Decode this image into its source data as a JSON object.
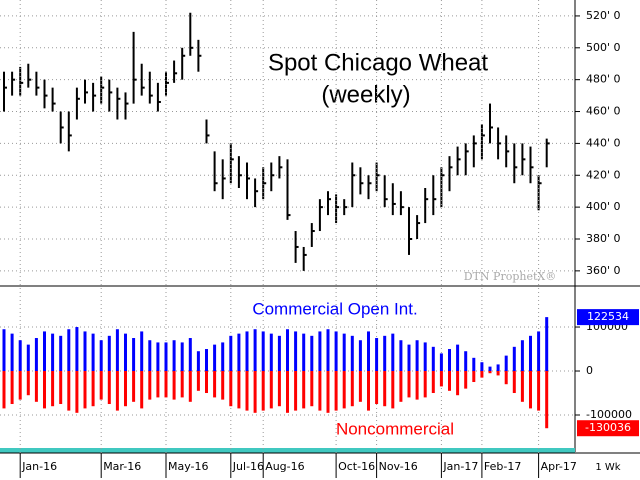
{
  "chart_data": [
    {
      "type": "ohlc",
      "title": "Spot Chicago Wheat",
      "subtitle": "(weekly)",
      "watermark": "DTN ProphetX®",
      "color": "#000000",
      "high": [
        485,
        485,
        488,
        490,
        485,
        480,
        475,
        460,
        460,
        475,
        480,
        478,
        482,
        480,
        475,
        472,
        510,
        490,
        485,
        478,
        485,
        492,
        500,
        522,
        505,
        455,
        435,
        430,
        440,
        432,
        428,
        418,
        425,
        428,
        432,
        430,
        385,
        375,
        390,
        405,
        410,
        408,
        405,
        428,
        425,
        420,
        428,
        420,
        415,
        410,
        400,
        395,
        412,
        420,
        425,
        432,
        438,
        440,
        445,
        452,
        465,
        450,
        445,
        440,
        440,
        438,
        420,
        443
      ],
      "low": [
        460,
        470,
        470,
        475,
        470,
        462,
        460,
        440,
        435,
        455,
        465,
        460,
        465,
        460,
        455,
        455,
        465,
        470,
        465,
        460,
        470,
        478,
        480,
        495,
        485,
        440,
        410,
        405,
        415,
        412,
        405,
        400,
        405,
        410,
        418,
        392,
        365,
        360,
        375,
        385,
        395,
        390,
        395,
        400,
        408,
        405,
        410,
        400,
        395,
        395,
        370,
        380,
        390,
        395,
        400,
        410,
        420,
        420,
        425,
        430,
        440,
        430,
        425,
        415,
        420,
        415,
        398,
        425
      ],
      "close": [
        475,
        480,
        478,
        480,
        475,
        470,
        465,
        450,
        445,
        468,
        472,
        470,
        475,
        472,
        468,
        465,
        480,
        475,
        470,
        466,
        478,
        484,
        495,
        500,
        495,
        445,
        415,
        418,
        430,
        420,
        418,
        410,
        415,
        420,
        425,
        395,
        375,
        370,
        385,
        400,
        405,
        400,
        400,
        420,
        415,
        415,
        420,
        405,
        402,
        400,
        380,
        390,
        405,
        405,
        420,
        425,
        430,
        435,
        440,
        445,
        450,
        440,
        435,
        425,
        430,
        425,
        415,
        440
      ],
      "ylim": [
        350.5,
        530
      ],
      "yticks": [
        {
          "value": 360,
          "label": "360' 0"
        },
        {
          "value": 380,
          "label": "380' 0"
        },
        {
          "value": 400,
          "label": "400' 0"
        },
        {
          "value": 420,
          "label": "420' 0"
        },
        {
          "value": 440,
          "label": "440' 0"
        },
        {
          "value": 460,
          "label": "460' 0"
        },
        {
          "value": 480,
          "label": "480' 0"
        },
        {
          "value": 500,
          "label": "500' 0"
        },
        {
          "value": 520,
          "label": "520' 0"
        }
      ],
      "grid": true
    },
    {
      "type": "bar",
      "interval": "1 Wk",
      "categories": [
        null,
        null,
        "Jan-16",
        null,
        null,
        null,
        null,
        null,
        null,
        null,
        null,
        null,
        "Mar-16",
        null,
        null,
        null,
        null,
        null,
        null,
        null,
        "May-16",
        null,
        null,
        null,
        null,
        null,
        null,
        null,
        "Jul-16",
        null,
        null,
        null,
        "Aug-16",
        null,
        null,
        null,
        null,
        null,
        null,
        null,
        null,
        "Oct-16",
        null,
        null,
        null,
        null,
        "Nov-16",
        null,
        null,
        null,
        null,
        null,
        null,
        null,
        "Jan-17",
        null,
        null,
        null,
        null,
        "Feb-17",
        null,
        null,
        null,
        null,
        null,
        null,
        "Apr-17",
        null
      ],
      "series": [
        {
          "name": "Commercial Open Int.",
          "color": "#0000ff",
          "values": [
            95000,
            85000,
            70000,
            60000,
            75000,
            90000,
            85000,
            80000,
            95000,
            100000,
            90000,
            85000,
            70000,
            80000,
            95000,
            85000,
            75000,
            90000,
            70000,
            65000,
            65000,
            70000,
            65000,
            75000,
            45000,
            50000,
            60000,
            65000,
            80000,
            85000,
            90000,
            95000,
            90000,
            85000,
            80000,
            95000,
            90000,
            85000,
            80000,
            90000,
            95000,
            90000,
            85000,
            80000,
            70000,
            90000,
            75000,
            80000,
            85000,
            70000,
            60000,
            70000,
            65000,
            55000,
            40000,
            50000,
            60000,
            45000,
            30000,
            20000,
            10000,
            15000,
            35000,
            55000,
            70000,
            80000,
            90000,
            122534
          ]
        },
        {
          "name": "Noncommercial",
          "color": "#ff0000",
          "values": [
            -85000,
            -75000,
            -65000,
            -55000,
            -70000,
            -85000,
            -80000,
            -75000,
            -90000,
            -95000,
            -85000,
            -80000,
            -65000,
            -75000,
            -90000,
            -80000,
            -70000,
            -85000,
            -65000,
            -60000,
            -60000,
            -65000,
            -60000,
            -70000,
            -45000,
            -50000,
            -60000,
            -65000,
            -80000,
            -85000,
            -90000,
            -95000,
            -90000,
            -85000,
            -80000,
            -95000,
            -90000,
            -85000,
            -80000,
            -90000,
            -95000,
            -90000,
            -85000,
            -80000,
            -70000,
            -90000,
            -75000,
            -80000,
            -85000,
            -70000,
            -60000,
            -65000,
            -60000,
            -50000,
            -35000,
            -45000,
            -55000,
            -40000,
            -25000,
            -15000,
            -5000,
            -10000,
            -30000,
            -50000,
            -70000,
            -85000,
            -90000,
            -130036
          ]
        }
      ],
      "ylim": [
        -175000,
        191000
      ],
      "yticks": [
        -100000,
        0,
        100000
      ],
      "grid": true
    }
  ]
}
